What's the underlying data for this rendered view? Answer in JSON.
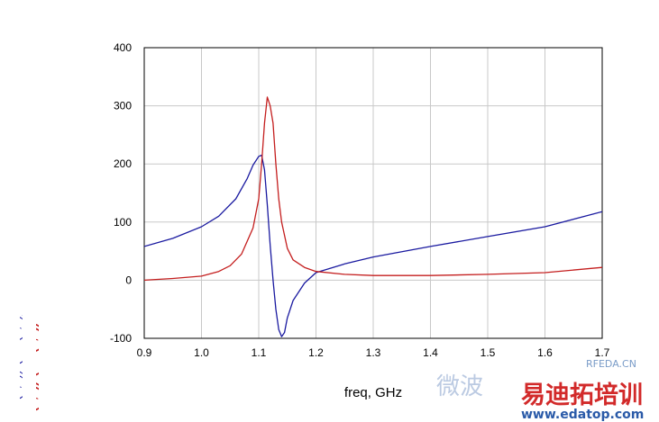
{
  "chart_data": {
    "type": "line",
    "title": "",
    "xlabel": "freq, GHz",
    "ylabels": [
      "1+S(1,1))*(1-S(2,2))+S(1,2)*S(2,1))/((1-S(1,1))*(1-S(2,2)",
      "+S(1,1))*(1-S(2,2))+S(1,2)*S(2,1))/((1-S(1,1))*(1-S(2,2))-"
    ],
    "xlim": [
      0.9,
      1.7
    ],
    "ylim": [
      -100,
      400
    ],
    "xticks": [
      "0.9",
      "1.0",
      "1.1",
      "1.2",
      "1.3",
      "1.4",
      "1.5",
      "1.6",
      "1.7"
    ],
    "yticks": [
      "400",
      "300",
      "200",
      "100",
      "0",
      "-100"
    ],
    "grid": true,
    "series": [
      {
        "color": "#1a1aa0",
        "x": [
          0.9,
          0.95,
          1.0,
          1.03,
          1.06,
          1.08,
          1.09,
          1.1,
          1.105,
          1.11,
          1.115,
          1.12,
          1.125,
          1.13,
          1.135,
          1.14,
          1.145,
          1.15,
          1.16,
          1.18,
          1.2,
          1.25,
          1.3,
          1.4,
          1.5,
          1.6,
          1.7
        ],
        "y": [
          58,
          72,
          92,
          110,
          140,
          175,
          198,
          213,
          215,
          190,
          130,
          60,
          0,
          -50,
          -85,
          -97,
          -90,
          -65,
          -35,
          -5,
          13,
          28,
          40,
          58,
          75,
          92,
          118
        ]
      },
      {
        "color": "#c41e1e",
        "x": [
          0.9,
          0.95,
          1.0,
          1.03,
          1.05,
          1.07,
          1.09,
          1.1,
          1.105,
          1.11,
          1.115,
          1.12,
          1.125,
          1.13,
          1.135,
          1.14,
          1.15,
          1.16,
          1.18,
          1.2,
          1.25,
          1.3,
          1.4,
          1.5,
          1.6,
          1.7
        ],
        "y": [
          0,
          3,
          7,
          15,
          25,
          45,
          90,
          140,
          200,
          270,
          315,
          300,
          270,
          200,
          140,
          100,
          55,
          35,
          22,
          15,
          10,
          8,
          8,
          10,
          13,
          22
        ]
      }
    ]
  },
  "watermark": {
    "rf_text": "RFEDA.CN",
    "text_cn_1": "微波",
    "text_cn_2": "易迪拓培训",
    "url": "www.edatop.com"
  }
}
